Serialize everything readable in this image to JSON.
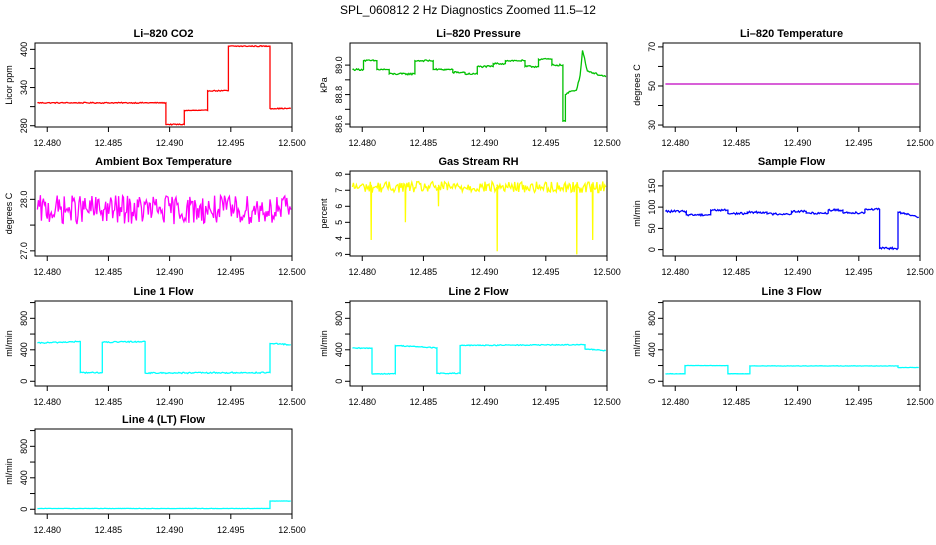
{
  "figure_title": "SPL_060812  2 Hz Diagnostics Zoomed 11.5–12",
  "chart_data": [
    {
      "type": "line",
      "title": "Li–820 CO2",
      "xlabel": "",
      "ylabel": "Licor ppm",
      "xlim": [
        12.479,
        12.5
      ],
      "ylim": [
        278,
        410
      ],
      "x_ticks": [
        "12.480",
        "12.485",
        "12.490",
        "12.495",
        "12.500"
      ],
      "y_ticks": [
        "280",
        "340",
        "400"
      ],
      "y_ticks_extra": [
        "310",
        "370"
      ],
      "color": "#ff0000",
      "noise": 0.8,
      "series": [
        {
          "x": [
            12.4792,
            12.4897,
            12.4897,
            12.4912,
            12.4912,
            12.4931,
            12.4931,
            12.4948,
            12.4948,
            12.4982,
            12.4982,
            12.4999
          ],
          "values": [
            316,
            316,
            282,
            282,
            304,
            304,
            335,
            335,
            405,
            405,
            307,
            307
          ]
        }
      ]
    },
    {
      "type": "line",
      "title": "Li–820 Pressure",
      "xlabel": "",
      "ylabel": "kPa",
      "xlim": [
        12.479,
        12.5
      ],
      "ylim": [
        88.58,
        89.15
      ],
      "x_ticks": [
        "12.480",
        "12.485",
        "12.490",
        "12.495",
        "12.500"
      ],
      "y_ticks": [
        "88.6",
        "88.8",
        "89.0"
      ],
      "y_ticks_extra": [
        "88.7",
        "88.9"
      ],
      "color": "#00c000",
      "noise": 0.006,
      "series": [
        {
          "x": [
            12.4792,
            12.4801,
            12.4801,
            12.4812,
            12.4812,
            12.4822,
            12.4822,
            12.4843,
            12.4843,
            12.4858,
            12.4858,
            12.4874,
            12.4874,
            12.4884,
            12.4884,
            12.4894,
            12.4894,
            12.4907,
            12.4907,
            12.4917,
            12.4917,
            12.4933,
            12.4933,
            12.4944,
            12.4944,
            12.4955,
            12.4955,
            12.4964,
            12.4964,
            12.4966,
            12.4966,
            12.497,
            12.4975,
            12.4978,
            12.498,
            12.4984,
            12.4999
          ],
          "values": [
            88.97,
            88.97,
            89.03,
            89.03,
            88.97,
            88.97,
            88.94,
            88.94,
            89.03,
            89.03,
            88.97,
            88.97,
            88.95,
            88.95,
            88.94,
            88.94,
            88.99,
            88.99,
            89.01,
            89.01,
            89.03,
            89.03,
            88.99,
            88.99,
            89.04,
            89.04,
            89.0,
            89.0,
            88.62,
            88.62,
            88.8,
            88.82,
            88.83,
            88.93,
            89.1,
            88.96,
            88.92
          ]
        }
      ]
    },
    {
      "type": "line",
      "title": "Li–820 Temperature",
      "xlabel": "",
      "ylabel": "degrees C",
      "xlim": [
        12.479,
        12.5
      ],
      "ylim": [
        29,
        72
      ],
      "x_ticks": [
        "12.480",
        "12.485",
        "12.490",
        "12.495",
        "12.500"
      ],
      "y_ticks": [
        "30",
        "50",
        "70"
      ],
      "y_ticks_extra": [
        "40",
        "60"
      ],
      "color": "#c000c0",
      "noise": 0,
      "series": [
        {
          "x": [
            12.4792,
            12.4999
          ],
          "values": [
            51,
            51
          ]
        }
      ]
    },
    {
      "type": "line",
      "title": "Ambient Box Temperature",
      "xlabel": "",
      "ylabel": "degrees C",
      "xlim": [
        12.479,
        12.5
      ],
      "ylim": [
        26.9,
        28.55
      ],
      "x_ticks": [
        "12.480",
        "12.485",
        "12.490",
        "12.495",
        "12.500"
      ],
      "y_ticks": [
        "27.0",
        "28.0"
      ],
      "y_ticks_extra": [
        "27.5"
      ],
      "color": "#ff00ff",
      "noise": 0.28,
      "series": [
        {
          "x": [
            12.4792,
            12.4999
          ],
          "values": [
            27.8,
            27.8
          ]
        }
      ]
    },
    {
      "type": "line",
      "title": "Gas Stream RH",
      "xlabel": "",
      "ylabel": "percent",
      "xlim": [
        12.479,
        12.5
      ],
      "ylim": [
        2.9,
        8.2
      ],
      "x_ticks": [
        "12.480",
        "12.485",
        "12.490",
        "12.495",
        "12.500"
      ],
      "y_ticks": [
        "3",
        "4",
        "5",
        "6",
        "7",
        "8"
      ],
      "y_ticks_extra": [],
      "color": "#ffff00",
      "noise": 0.35,
      "spikes": [
        [
          12.4807,
          3.9
        ],
        [
          12.4835,
          5.0
        ],
        [
          12.4862,
          6.0
        ],
        [
          12.491,
          3.2
        ],
        [
          12.4975,
          3.0
        ],
        [
          12.4988,
          3.9
        ]
      ],
      "series": [
        {
          "x": [
            12.4792,
            12.4999
          ],
          "values": [
            7.2,
            7.2
          ]
        }
      ]
    },
    {
      "type": "line",
      "title": "Sample Flow",
      "xlabel": "",
      "ylabel": "ml/min",
      "xlim": [
        12.479,
        12.5
      ],
      "ylim": [
        -15,
        185
      ],
      "x_ticks": [
        "12.480",
        "12.485",
        "12.490",
        "12.495",
        "12.500"
      ],
      "y_ticks": [
        "0",
        "50",
        "100",
        "150"
      ],
      "y_ticks_extra": [],
      "color": "#0000ff",
      "noise": 2.5,
      "series": [
        {
          "x": [
            12.4792,
            12.4809,
            12.4809,
            12.4829,
            12.4829,
            12.4843,
            12.4843,
            12.4859,
            12.4859,
            12.4875,
            12.4875,
            12.4895,
            12.4895,
            12.4907,
            12.4907,
            12.4925,
            12.4925,
            12.4937,
            12.4937,
            12.4955,
            12.4955,
            12.4967,
            12.4967,
            12.4982,
            12.4982,
            12.4999
          ],
          "values": [
            90,
            90,
            82,
            82,
            93,
            93,
            85,
            85,
            88,
            88,
            84,
            84,
            90,
            90,
            86,
            86,
            93,
            93,
            87,
            87,
            95,
            95,
            3,
            3,
            88,
            76
          ]
        }
      ]
    },
    {
      "type": "line",
      "title": "Line 1 Flow",
      "xlabel": "",
      "ylabel": "ml/min",
      "xlim": [
        12.479,
        12.5
      ],
      "ylim": [
        -60,
        1020
      ],
      "x_ticks": [
        "12.480",
        "12.485",
        "12.490",
        "12.495",
        "12.500"
      ],
      "y_ticks": [
        "0",
        "400",
        "800"
      ],
      "y_ticks_extra": [
        "200",
        "600",
        "1000"
      ],
      "color": "#00ffff",
      "noise": 8,
      "series": [
        {
          "x": [
            12.4792,
            12.4827,
            12.4827,
            12.4845,
            12.4845,
            12.488,
            12.488,
            12.4982,
            12.4982,
            12.4999
          ],
          "values": [
            485,
            505,
            110,
            110,
            495,
            505,
            105,
            110,
            480,
            465
          ]
        }
      ]
    },
    {
      "type": "line",
      "title": "Line 2 Flow",
      "xlabel": "",
      "ylabel": "ml/min",
      "xlim": [
        12.479,
        12.5
      ],
      "ylim": [
        -60,
        1020
      ],
      "x_ticks": [
        "12.480",
        "12.485",
        "12.490",
        "12.495",
        "12.500"
      ],
      "y_ticks": [
        "0",
        "400",
        "800"
      ],
      "y_ticks_extra": [
        "200",
        "600",
        "1000"
      ],
      "color": "#00ffff",
      "noise": 6,
      "series": [
        {
          "x": [
            12.4792,
            12.4808,
            12.4808,
            12.4827,
            12.4827,
            12.4861,
            12.4861,
            12.488,
            12.488,
            12.4982,
            12.4982,
            12.4999
          ],
          "values": [
            420,
            420,
            95,
            95,
            455,
            425,
            100,
            100,
            455,
            465,
            410,
            390
          ]
        }
      ]
    },
    {
      "type": "line",
      "title": "Line 3 Flow",
      "xlabel": "",
      "ylabel": "ml/min",
      "xlim": [
        12.479,
        12.5
      ],
      "ylim": [
        -60,
        1020
      ],
      "x_ticks": [
        "12.480",
        "12.485",
        "12.490",
        "12.495",
        "12.500"
      ],
      "y_ticks": [
        "0",
        "400",
        "800"
      ],
      "y_ticks_extra": [
        "200",
        "600",
        "1000"
      ],
      "color": "#00ffff",
      "noise": 2,
      "series": [
        {
          "x": [
            12.4792,
            12.4808,
            12.4808,
            12.4843,
            12.4843,
            12.4861,
            12.4861,
            12.4982,
            12.4982,
            12.4999
          ],
          "values": [
            95,
            95,
            200,
            200,
            95,
            95,
            195,
            195,
            175,
            175
          ]
        }
      ]
    },
    {
      "type": "line",
      "title": "Line 4 (LT) Flow",
      "xlabel": "",
      "ylabel": "ml/min",
      "xlim": [
        12.479,
        12.5
      ],
      "ylim": [
        -60,
        1020
      ],
      "x_ticks": [
        "12.480",
        "12.485",
        "12.490",
        "12.495",
        "12.500"
      ],
      "y_ticks": [
        "0",
        "400",
        "800"
      ],
      "y_ticks_extra": [
        "200",
        "600",
        "1000"
      ],
      "color": "#00ffff",
      "noise": 2,
      "series": [
        {
          "x": [
            12.4792,
            12.4982,
            12.4982,
            12.4999
          ],
          "values": [
            10,
            10,
            105,
            105
          ]
        }
      ]
    }
  ]
}
